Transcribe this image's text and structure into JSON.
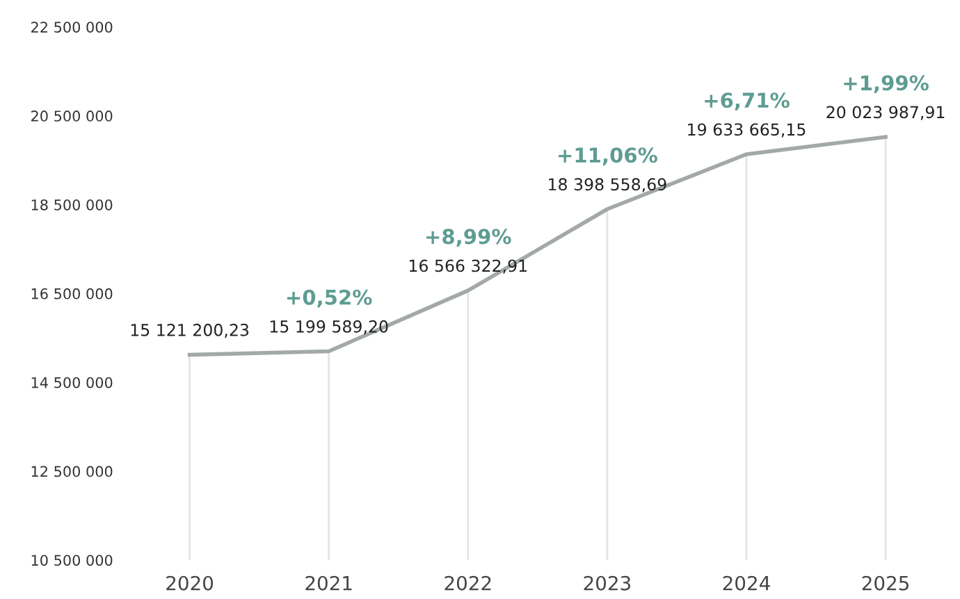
{
  "chart_data": {
    "type": "line",
    "categories": [
      "2020",
      "2021",
      "2022",
      "2023",
      "2024",
      "2025"
    ],
    "series": [
      {
        "color": "#a3aaa6",
        "values": [
          15121200.23,
          15199589.2,
          16566322.91,
          18398558.69,
          19633665.15,
          20023987.91
        ],
        "value_labels": [
          "15 121 200,23",
          "15 199 589,20",
          "16 566 322,91",
          "18 398 558,69",
          "19 633 665,15",
          "20 023 987,91"
        ]
      }
    ],
    "annotations": [
      {
        "text": "+0,52%",
        "x": "2021",
        "y": 15199589.2
      },
      {
        "text": "+8,99%",
        "x": "2022",
        "y": 16566322.91
      },
      {
        "text": "+11,06%",
        "x": "2023",
        "y": 18398558.69
      },
      {
        "text": "+6,71%",
        "x": "2024",
        "y": 19633665.15
      },
      {
        "text": "+1,99%",
        "x": "2025",
        "y": 20023987.91
      }
    ],
    "ylim": [
      10500000,
      22500000
    ],
    "yticks": [
      {
        "value": 10500000,
        "label": "10 500 000"
      },
      {
        "value": 12500000,
        "label": "12 500 000"
      },
      {
        "value": 14500000,
        "label": "14 500 000"
      },
      {
        "value": 16500000,
        "label": "16 500 000"
      },
      {
        "value": 18500000,
        "label": "18 500 000"
      },
      {
        "value": 20500000,
        "label": "20 500 000"
      },
      {
        "value": 22500000,
        "label": "22 500 000"
      }
    ],
    "grid": "x",
    "legend": false,
    "marker": "none",
    "line_style": "solid"
  }
}
